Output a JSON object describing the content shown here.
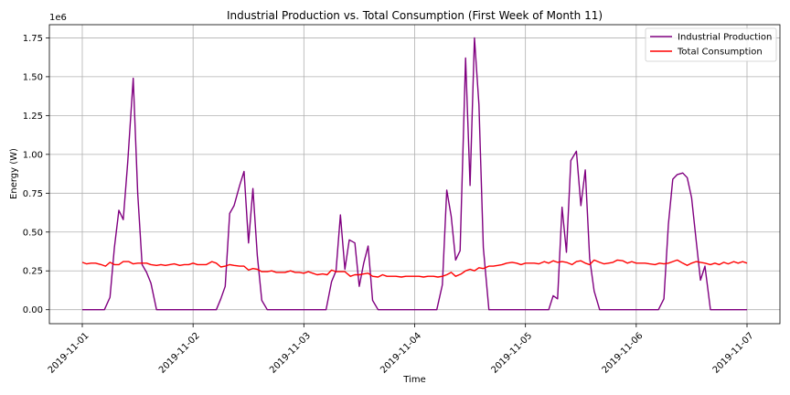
{
  "chart_data": {
    "type": "line",
    "title": "Industrial Production vs. Total Consumption (First Week of Month 11)",
    "xlabel": "Time",
    "ylabel": "Energy (W)",
    "y_scale_label": "1e6",
    "xlim": [
      0,
      6
    ],
    "ylim": [
      -0.09,
      1.835
    ],
    "y_ticks": [
      0.0,
      0.25,
      0.5,
      0.75,
      1.0,
      1.25,
      1.5,
      1.75
    ],
    "y_tick_labels": [
      "0.00",
      "0.25",
      "0.50",
      "0.75",
      "1.00",
      "1.25",
      "1.50",
      "1.75"
    ],
    "x_ticks": [
      0,
      1,
      2,
      3,
      4,
      5,
      6
    ],
    "x_tick_labels": [
      "2019-11-01",
      "2019-11-02",
      "2019-11-03",
      "2019-11-04",
      "2019-11-05",
      "2019-11-06",
      "2019-11-07"
    ],
    "grid": true,
    "legend": "top-right",
    "series": [
      {
        "name": "Industrial Production",
        "color": "#800080",
        "points": [
          [
            0.0,
            0.0
          ],
          [
            0.2,
            0.0
          ],
          [
            0.25,
            0.08
          ],
          [
            0.29,
            0.4
          ],
          [
            0.33,
            0.64
          ],
          [
            0.37,
            0.58
          ],
          [
            0.41,
            0.95
          ],
          [
            0.46,
            1.49
          ],
          [
            0.5,
            0.75
          ],
          [
            0.54,
            0.29
          ],
          [
            0.58,
            0.24
          ],
          [
            0.62,
            0.17
          ],
          [
            0.67,
            0.0
          ],
          [
            1.0,
            0.0
          ],
          [
            1.21,
            0.0
          ],
          [
            1.25,
            0.07
          ],
          [
            1.29,
            0.15
          ],
          [
            1.33,
            0.62
          ],
          [
            1.37,
            0.67
          ],
          [
            1.42,
            0.8
          ],
          [
            1.46,
            0.89
          ],
          [
            1.5,
            0.43
          ],
          [
            1.54,
            0.78
          ],
          [
            1.58,
            0.35
          ],
          [
            1.62,
            0.06
          ],
          [
            1.67,
            0.0
          ],
          [
            2.0,
            0.0
          ],
          [
            2.2,
            0.0
          ],
          [
            2.25,
            0.18
          ],
          [
            2.29,
            0.25
          ],
          [
            2.33,
            0.61
          ],
          [
            2.37,
            0.26
          ],
          [
            2.41,
            0.45
          ],
          [
            2.46,
            0.43
          ],
          [
            2.5,
            0.15
          ],
          [
            2.54,
            0.3
          ],
          [
            2.58,
            0.41
          ],
          [
            2.62,
            0.06
          ],
          [
            2.67,
            0.0
          ],
          [
            3.0,
            0.0
          ],
          [
            3.2,
            0.0
          ],
          [
            3.25,
            0.16
          ],
          [
            3.29,
            0.77
          ],
          [
            3.33,
            0.6
          ],
          [
            3.37,
            0.32
          ],
          [
            3.41,
            0.38
          ],
          [
            3.46,
            1.62
          ],
          [
            3.5,
            0.8
          ],
          [
            3.54,
            1.75
          ],
          [
            3.58,
            1.32
          ],
          [
            3.62,
            0.4
          ],
          [
            3.67,
            0.0
          ],
          [
            4.0,
            0.0
          ],
          [
            4.21,
            0.0
          ],
          [
            4.25,
            0.09
          ],
          [
            4.29,
            0.07
          ],
          [
            4.33,
            0.66
          ],
          [
            4.37,
            0.37
          ],
          [
            4.41,
            0.96
          ],
          [
            4.46,
            1.02
          ],
          [
            4.5,
            0.67
          ],
          [
            4.54,
            0.9
          ],
          [
            4.58,
            0.33
          ],
          [
            4.62,
            0.12
          ],
          [
            4.67,
            0.0
          ],
          [
            5.0,
            0.0
          ],
          [
            5.2,
            0.0
          ],
          [
            5.25,
            0.07
          ],
          [
            5.29,
            0.55
          ],
          [
            5.33,
            0.84
          ],
          [
            5.37,
            0.87
          ],
          [
            5.42,
            0.88
          ],
          [
            5.46,
            0.85
          ],
          [
            5.5,
            0.72
          ],
          [
            5.54,
            0.45
          ],
          [
            5.58,
            0.19
          ],
          [
            5.62,
            0.28
          ],
          [
            5.67,
            0.0
          ],
          [
            6.0,
            0.0
          ]
        ]
      },
      {
        "name": "Total Consumption",
        "color": "#ff0000",
        "points": [
          [
            0.0,
            0.305
          ],
          [
            0.04,
            0.295
          ],
          [
            0.08,
            0.3
          ],
          [
            0.12,
            0.3
          ],
          [
            0.17,
            0.29
          ],
          [
            0.21,
            0.28
          ],
          [
            0.25,
            0.305
          ],
          [
            0.29,
            0.29
          ],
          [
            0.33,
            0.29
          ],
          [
            0.37,
            0.31
          ],
          [
            0.42,
            0.31
          ],
          [
            0.46,
            0.295
          ],
          [
            0.5,
            0.3
          ],
          [
            0.54,
            0.3
          ],
          [
            0.58,
            0.3
          ],
          [
            0.62,
            0.29
          ],
          [
            0.67,
            0.285
          ],
          [
            0.71,
            0.29
          ],
          [
            0.75,
            0.285
          ],
          [
            0.79,
            0.29
          ],
          [
            0.83,
            0.295
          ],
          [
            0.88,
            0.285
          ],
          [
            0.92,
            0.29
          ],
          [
            0.96,
            0.29
          ],
          [
            1.0,
            0.3
          ],
          [
            1.04,
            0.29
          ],
          [
            1.08,
            0.29
          ],
          [
            1.12,
            0.29
          ],
          [
            1.17,
            0.31
          ],
          [
            1.21,
            0.3
          ],
          [
            1.25,
            0.275
          ],
          [
            1.29,
            0.28
          ],
          [
            1.33,
            0.29
          ],
          [
            1.37,
            0.285
          ],
          [
            1.42,
            0.28
          ],
          [
            1.46,
            0.28
          ],
          [
            1.5,
            0.255
          ],
          [
            1.54,
            0.265
          ],
          [
            1.58,
            0.26
          ],
          [
            1.62,
            0.245
          ],
          [
            1.67,
            0.245
          ],
          [
            1.71,
            0.25
          ],
          [
            1.75,
            0.24
          ],
          [
            1.79,
            0.24
          ],
          [
            1.83,
            0.24
          ],
          [
            1.88,
            0.25
          ],
          [
            1.92,
            0.24
          ],
          [
            1.96,
            0.24
          ],
          [
            2.0,
            0.235
          ],
          [
            2.04,
            0.245
          ],
          [
            2.08,
            0.235
          ],
          [
            2.12,
            0.225
          ],
          [
            2.17,
            0.23
          ],
          [
            2.21,
            0.225
          ],
          [
            2.25,
            0.255
          ],
          [
            2.29,
            0.245
          ],
          [
            2.33,
            0.245
          ],
          [
            2.37,
            0.245
          ],
          [
            2.42,
            0.215
          ],
          [
            2.46,
            0.225
          ],
          [
            2.5,
            0.225
          ],
          [
            2.54,
            0.23
          ],
          [
            2.58,
            0.235
          ],
          [
            2.62,
            0.215
          ],
          [
            2.67,
            0.21
          ],
          [
            2.71,
            0.225
          ],
          [
            2.75,
            0.215
          ],
          [
            2.79,
            0.215
          ],
          [
            2.83,
            0.215
          ],
          [
            2.88,
            0.21
          ],
          [
            2.92,
            0.215
          ],
          [
            2.96,
            0.215
          ],
          [
            3.0,
            0.215
          ],
          [
            3.04,
            0.215
          ],
          [
            3.08,
            0.21
          ],
          [
            3.12,
            0.215
          ],
          [
            3.17,
            0.215
          ],
          [
            3.21,
            0.21
          ],
          [
            3.25,
            0.215
          ],
          [
            3.29,
            0.225
          ],
          [
            3.33,
            0.24
          ],
          [
            3.37,
            0.215
          ],
          [
            3.42,
            0.23
          ],
          [
            3.46,
            0.25
          ],
          [
            3.5,
            0.26
          ],
          [
            3.54,
            0.25
          ],
          [
            3.58,
            0.27
          ],
          [
            3.62,
            0.265
          ],
          [
            3.67,
            0.28
          ],
          [
            3.71,
            0.28
          ],
          [
            3.75,
            0.285
          ],
          [
            3.79,
            0.29
          ],
          [
            3.83,
            0.3
          ],
          [
            3.88,
            0.305
          ],
          [
            3.92,
            0.3
          ],
          [
            3.96,
            0.29
          ],
          [
            4.0,
            0.3
          ],
          [
            4.04,
            0.3
          ],
          [
            4.08,
            0.3
          ],
          [
            4.12,
            0.295
          ],
          [
            4.17,
            0.31
          ],
          [
            4.21,
            0.3
          ],
          [
            4.25,
            0.315
          ],
          [
            4.29,
            0.305
          ],
          [
            4.33,
            0.31
          ],
          [
            4.37,
            0.305
          ],
          [
            4.42,
            0.29
          ],
          [
            4.46,
            0.31
          ],
          [
            4.5,
            0.315
          ],
          [
            4.54,
            0.3
          ],
          [
            4.58,
            0.29
          ],
          [
            4.62,
            0.32
          ],
          [
            4.67,
            0.305
          ],
          [
            4.71,
            0.295
          ],
          [
            4.75,
            0.3
          ],
          [
            4.79,
            0.305
          ],
          [
            4.83,
            0.32
          ],
          [
            4.88,
            0.315
          ],
          [
            4.92,
            0.3
          ],
          [
            4.96,
            0.31
          ],
          [
            5.0,
            0.3
          ],
          [
            5.04,
            0.3
          ],
          [
            5.08,
            0.3
          ],
          [
            5.12,
            0.295
          ],
          [
            5.17,
            0.29
          ],
          [
            5.21,
            0.3
          ],
          [
            5.25,
            0.295
          ],
          [
            5.29,
            0.3
          ],
          [
            5.33,
            0.31
          ],
          [
            5.37,
            0.32
          ],
          [
            5.42,
            0.3
          ],
          [
            5.46,
            0.285
          ],
          [
            5.5,
            0.3
          ],
          [
            5.54,
            0.31
          ],
          [
            5.58,
            0.305
          ],
          [
            5.62,
            0.3
          ],
          [
            5.67,
            0.29
          ],
          [
            5.71,
            0.3
          ],
          [
            5.75,
            0.29
          ],
          [
            5.79,
            0.305
          ],
          [
            5.83,
            0.295
          ],
          [
            5.88,
            0.31
          ],
          [
            5.92,
            0.3
          ],
          [
            5.96,
            0.31
          ],
          [
            6.0,
            0.3
          ]
        ]
      }
    ]
  }
}
